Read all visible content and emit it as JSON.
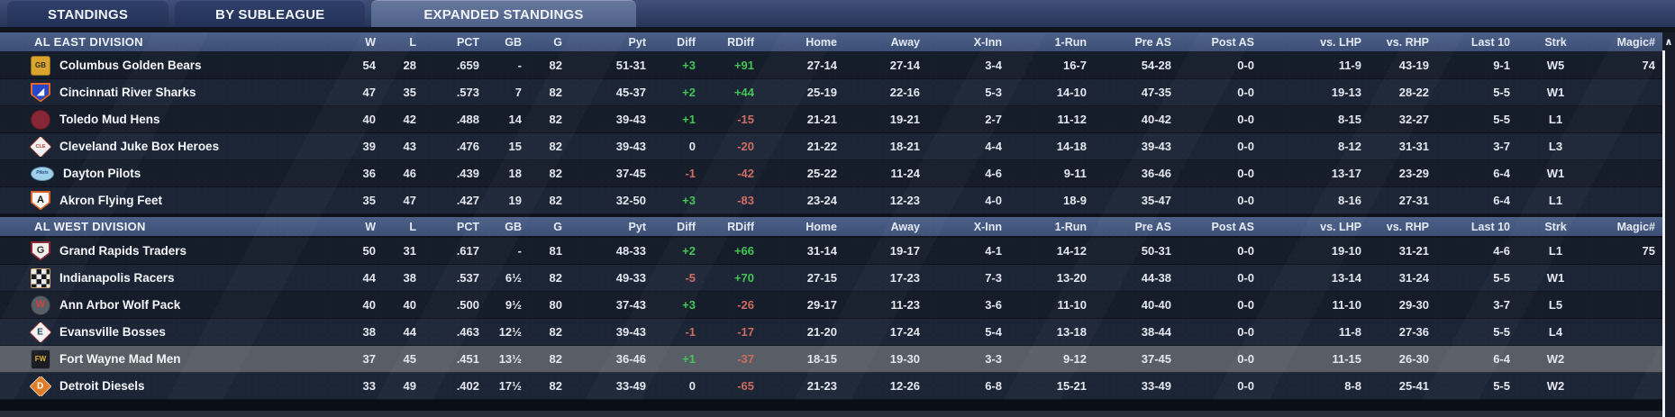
{
  "tabs": [
    {
      "label": "STANDINGS",
      "active": false
    },
    {
      "label": "BY SUBLEAGUE",
      "active": false
    },
    {
      "label": "EXPANDED STANDINGS",
      "active": true
    }
  ],
  "icons": {
    "scroll_up_glyph": "∧"
  },
  "colors": {
    "division_bar": "#44587E",
    "row_dark": "#151C2A",
    "row_light": "#1C2535",
    "row_highlight": "#585D66",
    "positive": "#41C653",
    "negative": "#CF6B61",
    "tab_active": "#5D6F93"
  },
  "table": {
    "columns": [
      "W",
      "L",
      "PCT",
      "GB",
      "G",
      "Pyt",
      "Diff",
      "RDiff",
      "Home",
      "Away",
      "X-Inn",
      "1-Run",
      "Pre AS",
      "Post AS",
      "vs. LHP",
      "vs. RHP",
      "Last 10",
      "Strk",
      "Magic#"
    ],
    "divisions": [
      {
        "name": "AL EAST DIVISION",
        "teams": [
          {
            "name": "Columbus Golden Bears",
            "highlighted": false,
            "logo": {
              "icon": "columbus-golden-bears-logo",
              "shape": "square",
              "bg": "#D9A32E",
              "border": "#8A6D1F",
              "fg": "#33301A",
              "label": "GB"
            },
            "stats": [
              "54",
              "28",
              ".659",
              "-",
              "82",
              "51-31",
              "+3",
              "+91",
              "27-14",
              "27-14",
              "3-4",
              "16-7",
              "54-28",
              "0-0",
              "11-9",
              "43-19",
              "9-1",
              "W5",
              "74"
            ]
          },
          {
            "name": "Cincinnati River Sharks",
            "highlighted": false,
            "logo": {
              "icon": "cincinnati-river-sharks-logo",
              "shape": "shield",
              "bg": "#2847C8",
              "border": "#E2672A",
              "fg": "#FFFFFF",
              "label": "◢"
            },
            "stats": [
              "47",
              "35",
              ".573",
              "7",
              "82",
              "45-37",
              "+2",
              "+44",
              "25-19",
              "22-16",
              "5-3",
              "14-10",
              "47-35",
              "0-0",
              "19-13",
              "28-22",
              "5-5",
              "W1",
              ""
            ]
          },
          {
            "name": "Toledo Mud Hens",
            "highlighted": false,
            "logo": {
              "icon": "toledo-mud-hens-logo",
              "shape": "circle",
              "bg": "#872635",
              "border": "#5E1822",
              "fg": "#E8C9A0",
              "label": ""
            },
            "stats": [
              "40",
              "42",
              ".488",
              "14",
              "82",
              "39-43",
              "+1",
              "-15",
              "21-21",
              "19-21",
              "2-7",
              "11-12",
              "40-42",
              "0-0",
              "8-15",
              "32-27",
              "5-5",
              "L1",
              ""
            ]
          },
          {
            "name": "Cleveland Juke Box Heroes",
            "highlighted": false,
            "logo": {
              "icon": "cleveland-juke-box-heroes-logo",
              "shape": "diamond",
              "bg": "#F2F2F2",
              "border": "#B8412F",
              "fg": "#C0392B",
              "label": "CLE"
            },
            "stats": [
              "39",
              "43",
              ".476",
              "15",
              "82",
              "39-43",
              "0",
              "-20",
              "21-22",
              "18-21",
              "4-4",
              "14-18",
              "39-43",
              "0-0",
              "8-12",
              "31-31",
              "3-7",
              "L3",
              ""
            ]
          },
          {
            "name": "Dayton Pilots",
            "highlighted": false,
            "logo": {
              "icon": "dayton-pilots-logo",
              "shape": "oval",
              "bg": "#9FD0EA",
              "border": "#5B87A8",
              "fg": "#1F4D7A",
              "label": "Pilots"
            },
            "stats": [
              "36",
              "46",
              ".439",
              "18",
              "82",
              "37-45",
              "-1",
              "-42",
              "25-22",
              "11-24",
              "4-6",
              "9-11",
              "36-46",
              "0-0",
              "13-17",
              "23-29",
              "6-4",
              "W1",
              ""
            ]
          },
          {
            "name": "Akron Flying Feet",
            "highlighted": false,
            "logo": {
              "icon": "akron-flying-feet-logo",
              "shape": "shield",
              "bg": "#F5F5F5",
              "border": "#D86427",
              "fg": "#111111",
              "label": "A"
            },
            "stats": [
              "35",
              "47",
              ".427",
              "19",
              "82",
              "32-50",
              "+3",
              "-83",
              "23-24",
              "12-23",
              "4-0",
              "18-9",
              "35-47",
              "0-0",
              "8-16",
              "27-31",
              "6-4",
              "L1",
              ""
            ]
          }
        ]
      },
      {
        "name": "AL WEST DIVISION",
        "teams": [
          {
            "name": "Grand Rapids Traders",
            "highlighted": false,
            "logo": {
              "icon": "grand-rapids-traders-logo",
              "shape": "shield",
              "bg": "#F2EFEA",
              "border": "#8A2332",
              "fg": "#2A2A2A",
              "label": "G"
            },
            "stats": [
              "50",
              "31",
              ".617",
              "-",
              "81",
              "48-33",
              "+2",
              "+66",
              "31-14",
              "19-17",
              "4-1",
              "14-12",
              "50-31",
              "0-0",
              "19-10",
              "31-21",
              "4-6",
              "L1",
              "75"
            ]
          },
          {
            "name": "Indianapolis Racers",
            "highlighted": false,
            "logo": {
              "icon": "indianapolis-racers-logo",
              "shape": "checker",
              "bg": "#14161A",
              "border": "#C9A36B",
              "fg": "#FFFFFF",
              "label": ""
            },
            "stats": [
              "44",
              "38",
              ".537",
              "6½",
              "82",
              "49-33",
              "-5",
              "+70",
              "27-15",
              "17-23",
              "7-3",
              "13-20",
              "44-38",
              "0-0",
              "13-14",
              "31-24",
              "5-5",
              "W1",
              ""
            ]
          },
          {
            "name": "Ann Arbor Wolf Pack",
            "highlighted": false,
            "logo": {
              "icon": "ann-arbor-wolf-pack-logo",
              "shape": "circle",
              "bg": "#565B63",
              "border": "#2E3138",
              "fg": "#D43A3A",
              "label": "W"
            },
            "stats": [
              "40",
              "40",
              ".500",
              "9½",
              "80",
              "37-43",
              "+3",
              "-26",
              "29-17",
              "11-23",
              "3-6",
              "11-10",
              "40-40",
              "0-0",
              "11-10",
              "29-30",
              "3-7",
              "L5",
              ""
            ]
          },
          {
            "name": "Evansville Bosses",
            "highlighted": false,
            "logo": {
              "icon": "evansville-bosses-logo",
              "shape": "diamond",
              "bg": "#F2F2F2",
              "border": "#C33B3B",
              "fg": "#1D3557",
              "label": "E"
            },
            "stats": [
              "38",
              "44",
              ".463",
              "12½",
              "82",
              "39-43",
              "-1",
              "-17",
              "21-20",
              "17-24",
              "5-4",
              "13-18",
              "38-44",
              "0-0",
              "11-8",
              "27-36",
              "5-5",
              "L4",
              ""
            ]
          },
          {
            "name": "Fort Wayne Mad Men",
            "highlighted": true,
            "logo": {
              "icon": "fort-wayne-mad-men-logo",
              "shape": "square",
              "bg": "#1A1C22",
              "border": "#4A5060",
              "fg": "#E2B33C",
              "label": "FW"
            },
            "stats": [
              "37",
              "45",
              ".451",
              "13½",
              "82",
              "36-46",
              "+1",
              "-37",
              "18-15",
              "19-30",
              "3-3",
              "9-12",
              "37-45",
              "0-0",
              "11-15",
              "26-30",
              "6-4",
              "W2",
              ""
            ]
          },
          {
            "name": "Detroit Diesels",
            "highlighted": false,
            "logo": {
              "icon": "detroit-diesels-logo",
              "shape": "diamond",
              "bg": "#E07B28",
              "border": "#F2E9DD",
              "fg": "#FFFFFF",
              "label": "D"
            },
            "stats": [
              "33",
              "49",
              ".402",
              "17½",
              "82",
              "33-49",
              "0",
              "-65",
              "21-23",
              "12-26",
              "6-8",
              "15-21",
              "33-49",
              "0-0",
              "8-8",
              "25-41",
              "5-5",
              "W2",
              ""
            ]
          }
        ]
      }
    ]
  }
}
